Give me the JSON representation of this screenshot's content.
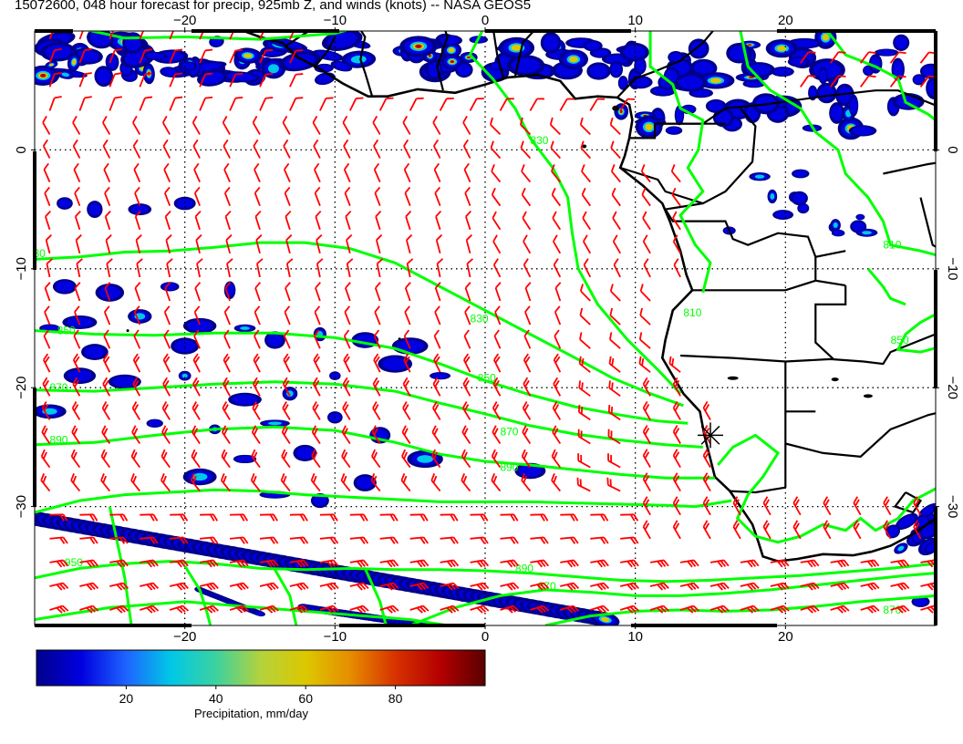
{
  "title": "15072600, 048 hour forecast for precip, 925mb Z, and winds (knots) -- NASA GEOS5",
  "map": {
    "lon_range": [
      -30,
      30
    ],
    "lat_range": [
      -40,
      10
    ],
    "lon_ticks": [
      {
        "value": -20,
        "label": "−20"
      },
      {
        "value": -10,
        "label": "−10"
      },
      {
        "value": 0,
        "label": "0"
      },
      {
        "value": 10,
        "label": "10"
      },
      {
        "value": 20,
        "label": "20"
      }
    ],
    "lat_ticks": [
      {
        "value": 0,
        "label": "0"
      },
      {
        "value": -10,
        "label": "−10"
      },
      {
        "value": -20,
        "label": "−20"
      },
      {
        "value": -30,
        "label": "−30"
      }
    ],
    "gridlines": "dotted",
    "contour_color": "#00ff00",
    "barb_color": "#ff0000",
    "coast_color": "#000000",
    "contour_labels": [
      {
        "text": "830",
        "lon": 3.0,
        "lat": 0.5
      },
      {
        "text": "830",
        "lon": -30.5,
        "lat": -9.0
      },
      {
        "text": "830",
        "lon": -1.0,
        "lat": -14.5
      },
      {
        "text": "850",
        "lon": -28.5,
        "lat": -15.5
      },
      {
        "text": "850",
        "lon": -0.5,
        "lat": -19.5
      },
      {
        "text": "870",
        "lon": -29.0,
        "lat": -20.3
      },
      {
        "text": "870",
        "lon": 1.0,
        "lat": -24.0
      },
      {
        "text": "890",
        "lon": -29.0,
        "lat": -24.7
      },
      {
        "text": "890",
        "lon": 1.0,
        "lat": -27.0
      },
      {
        "text": "890",
        "lon": 2.0,
        "lat": -35.5
      },
      {
        "text": "870",
        "lon": 3.5,
        "lat": -37.0
      },
      {
        "text": "950",
        "lon": -28.0,
        "lat": -35.0
      },
      {
        "text": "810",
        "lon": 13.2,
        "lat": -14.0
      },
      {
        "text": "850",
        "lon": 27.0,
        "lat": -16.3
      },
      {
        "text": "810",
        "lon": 26.5,
        "lat": -8.3
      },
      {
        "text": "870",
        "lon": 26.5,
        "lat": -39.0
      }
    ],
    "marker": {
      "symbol": "asterisk",
      "lon": 15.0,
      "lat": -24.0
    }
  },
  "colorbar": {
    "ticks": [
      {
        "value": 20,
        "label": "20"
      },
      {
        "value": 40,
        "label": "40"
      },
      {
        "value": 60,
        "label": "60"
      },
      {
        "value": 80,
        "label": "80"
      }
    ],
    "range": [
      0,
      100
    ],
    "label": "Precipitation, mm/day",
    "colors": [
      "#00008b",
      "#0000e0",
      "#1e64ff",
      "#00c8e6",
      "#3cd2a0",
      "#b4d23c",
      "#dcc800",
      "#e68c00",
      "#d73200",
      "#b40000",
      "#5a0000"
    ]
  }
}
